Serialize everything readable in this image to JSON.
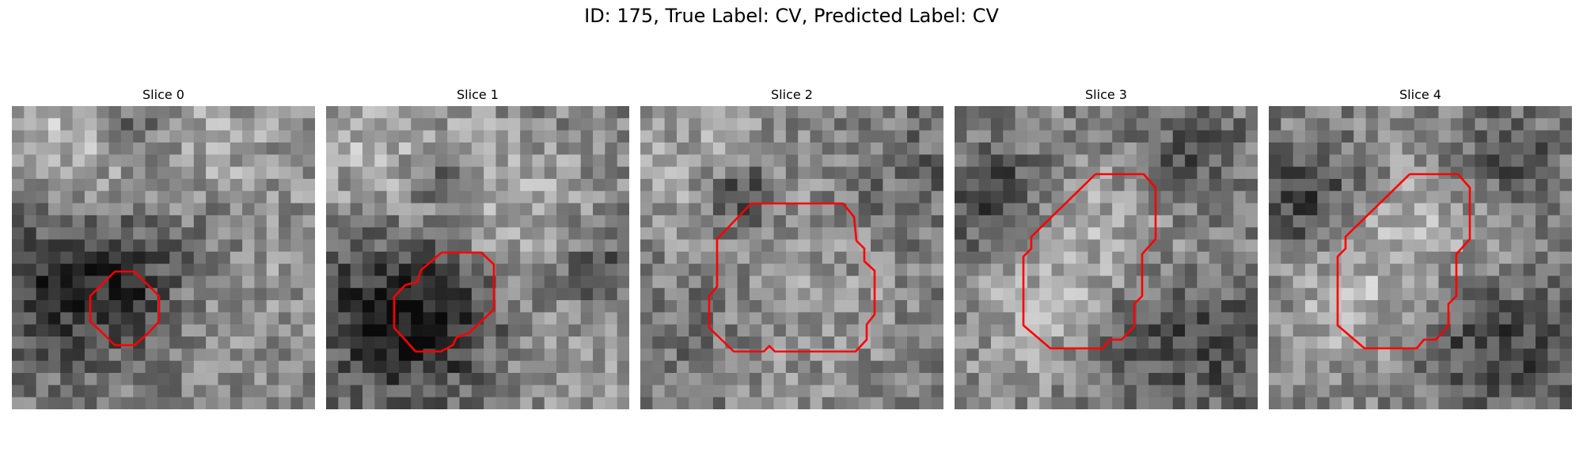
{
  "figure": {
    "title": "ID: 175, True Label: CV, Predicted Label: CV"
  },
  "slices": [
    {
      "title": "Slice 0"
    },
    {
      "title": "Slice 1"
    },
    {
      "title": "Slice 2"
    },
    {
      "title": "Slice 3"
    },
    {
      "title": "Slice 4"
    }
  ],
  "colors": {
    "contour": "#ff0000",
    "colormap": "gray"
  }
}
